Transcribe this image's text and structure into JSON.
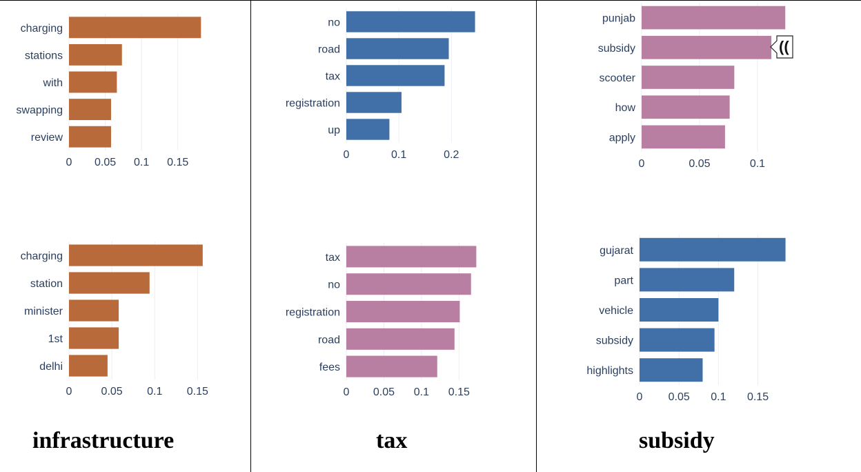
{
  "captions": {
    "infrastructure": "infrastructure",
    "tax": "tax",
    "subsidy": "subsidy"
  },
  "tooltip_text": "((",
  "chart_data": [
    {
      "type": "bar",
      "orientation": "horizontal",
      "color": "#b96a3a",
      "categories": [
        "charging",
        "stations",
        "with",
        "swapping",
        "review"
      ],
      "values": [
        0.182,
        0.073,
        0.066,
        0.058,
        0.058
      ],
      "xlim": [
        0,
        0.195
      ],
      "xticks": [
        0,
        0.05,
        0.1,
        0.15
      ],
      "xtick_labels": [
        "0",
        "0.05",
        "0.1",
        "0.15"
      ]
    },
    {
      "type": "bar",
      "orientation": "horizontal",
      "color": "#b96a3a",
      "categories": [
        "charging",
        "station",
        "minister",
        "1st",
        "delhi"
      ],
      "values": [
        0.156,
        0.094,
        0.058,
        0.058,
        0.045
      ],
      "xlim": [
        0,
        0.165
      ],
      "xticks": [
        0,
        0.05,
        0.1,
        0.15
      ],
      "xtick_labels": [
        "0",
        "0.05",
        "0.1",
        "0.15"
      ]
    },
    {
      "type": "bar",
      "orientation": "horizontal",
      "color": "#4170a8",
      "categories": [
        "no",
        "road",
        "tax",
        "registration",
        "up"
      ],
      "values": [
        0.245,
        0.195,
        0.187,
        0.105,
        0.082
      ],
      "xlim": [
        0,
        0.26
      ],
      "xticks": [
        0,
        0.1,
        0.2
      ],
      "xtick_labels": [
        "0",
        "0.1",
        "0.2"
      ]
    },
    {
      "type": "bar",
      "orientation": "horizontal",
      "color": "#b97fa2",
      "categories": [
        "tax",
        "no",
        "registration",
        "road",
        "fees"
      ],
      "values": [
        0.173,
        0.166,
        0.151,
        0.144,
        0.121
      ],
      "xlim": [
        0,
        0.18
      ],
      "xticks": [
        0,
        0.05,
        0.1,
        0.15
      ],
      "xtick_labels": [
        "0",
        "0.05",
        "0.1",
        "0.15"
      ]
    },
    {
      "type": "bar",
      "orientation": "horizontal",
      "color": "#b97fa2",
      "categories": [
        "punjab",
        "subsidy",
        "scooter",
        "how",
        "apply"
      ],
      "values": [
        0.124,
        0.112,
        0.08,
        0.076,
        0.072
      ],
      "xlim": [
        0,
        0.131
      ],
      "xticks": [
        0,
        0.05,
        0.1
      ],
      "xtick_labels": [
        "0",
        "0.05",
        "0.1"
      ]
    },
    {
      "type": "bar",
      "orientation": "horizontal",
      "color": "#4170a8",
      "categories": [
        "gujarat",
        "part",
        "vehicle",
        "subsidy",
        "highlights"
      ],
      "values": [
        0.185,
        0.12,
        0.1,
        0.095,
        0.08
      ],
      "xlim": [
        0,
        0.195
      ],
      "xticks": [
        0,
        0.05,
        0.1,
        0.15
      ],
      "xtick_labels": [
        "0",
        "0.05",
        "0.1",
        "0.15"
      ]
    }
  ]
}
